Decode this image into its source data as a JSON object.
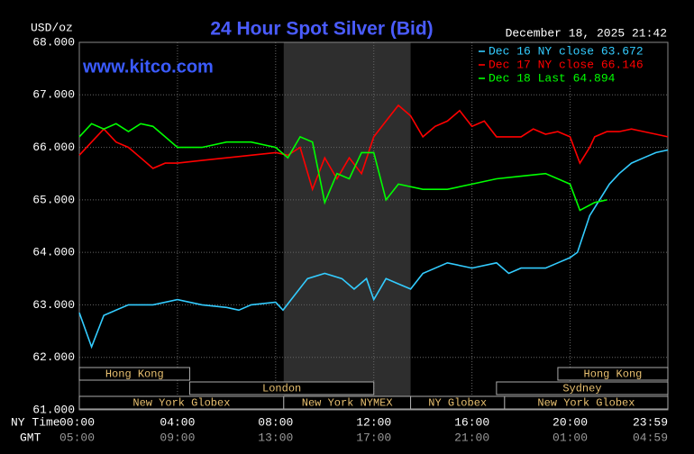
{
  "chart_data": {
    "type": "line",
    "title": "24 Hour Spot Silver (Bid)",
    "subtitle": "December 18, 2025 21:42",
    "watermark": "www.kitco.com",
    "y_label": "USD/oz",
    "x_label": "NY Time",
    "x2_label": "GMT",
    "xlim": [
      0,
      23.9833
    ],
    "xticks": [
      {
        "value": 0,
        "label": "00:00"
      },
      {
        "value": 4,
        "label": "04:00"
      },
      {
        "value": 8,
        "label": "08:00"
      },
      {
        "value": 12,
        "label": "12:00"
      },
      {
        "value": 16,
        "label": "16:00"
      },
      {
        "value": 20,
        "label": "20:00"
      },
      {
        "value": 23.9833,
        "label": "23:59"
      }
    ],
    "x2tick_labels": [
      "05:00",
      "09:00",
      "13:00",
      "17:00",
      "21:00",
      "01:00",
      "04:59"
    ],
    "ylim": [
      61,
      68
    ],
    "yticks": [
      {
        "value": 61,
        "label": "61.000"
      },
      {
        "value": 62,
        "label": "62.000"
      },
      {
        "value": 63,
        "label": "63.000"
      },
      {
        "value": 64,
        "label": "64.000"
      },
      {
        "value": 65,
        "label": "65.000"
      },
      {
        "value": 66,
        "label": "66.000"
      },
      {
        "value": 67,
        "label": "67.000"
      },
      {
        "value": 68,
        "label": "68.000"
      }
    ],
    "grid": true,
    "legend": "top-right",
    "series": [
      {
        "name": "Dec 16 NY close 63.672",
        "color": "#33ccff",
        "x": [
          0,
          0.5,
          1,
          2,
          3,
          4,
          5,
          6,
          6.5,
          7,
          8,
          8.3,
          8.8,
          9.3,
          10,
          10.7,
          11.2,
          11.7,
          12,
          12.5,
          13,
          13.5,
          14,
          15,
          16,
          17,
          17.5,
          18,
          19,
          19.5,
          20,
          20.3,
          20.8,
          21.2,
          21.6,
          22,
          22.5,
          23,
          23.5,
          23.9833
        ],
        "values": [
          62.85,
          62.2,
          62.8,
          63.0,
          63.0,
          63.1,
          63.0,
          62.95,
          62.9,
          63.0,
          63.05,
          62.9,
          63.2,
          63.5,
          63.6,
          63.5,
          63.3,
          63.5,
          63.1,
          63.5,
          63.4,
          63.3,
          63.6,
          63.8,
          63.7,
          63.8,
          63.6,
          63.7,
          63.7,
          63.8,
          63.9,
          64.0,
          64.7,
          65.0,
          65.3,
          65.5,
          65.7,
          65.8,
          65.9,
          65.95
        ]
      },
      {
        "name": "Dec 17 NY close 66.146",
        "color": "#ff0000",
        "x": [
          0,
          0.5,
          1,
          1.5,
          2,
          2.5,
          3,
          3.5,
          4,
          5,
          6,
          7,
          8,
          8.5,
          9,
          9.5,
          10,
          10.5,
          11,
          11.5,
          12,
          12.5,
          13,
          13.5,
          14,
          14.5,
          15,
          15.5,
          16,
          16.5,
          17,
          18,
          18.5,
          19,
          19.5,
          20,
          20.4,
          20.8,
          21,
          21.5,
          22,
          22.5,
          23,
          23.5,
          23.9833
        ],
        "values": [
          65.85,
          66.1,
          66.35,
          66.1,
          66.0,
          65.8,
          65.6,
          65.7,
          65.7,
          65.75,
          65.8,
          65.85,
          65.9,
          65.85,
          66.0,
          65.2,
          65.8,
          65.4,
          65.8,
          65.5,
          66.2,
          66.5,
          66.8,
          66.6,
          66.2,
          66.4,
          66.5,
          66.7,
          66.4,
          66.5,
          66.2,
          66.2,
          66.35,
          66.25,
          66.3,
          66.2,
          65.7,
          66.0,
          66.2,
          66.3,
          66.3,
          66.35,
          66.3,
          66.25,
          66.2
        ]
      },
      {
        "name": "Dec 18 Last 64.894",
        "color": "#00ff00",
        "x": [
          0,
          0.5,
          1,
          1.5,
          2,
          2.5,
          3,
          3.5,
          4,
          5,
          6,
          7,
          8,
          8.5,
          9,
          9.5,
          10,
          10.5,
          11,
          11.5,
          12,
          12.5,
          13,
          14,
          15,
          16,
          17,
          18,
          19,
          19.5,
          20,
          20.4,
          21,
          21.5
        ],
        "values": [
          66.2,
          66.45,
          66.35,
          66.45,
          66.3,
          66.45,
          66.4,
          66.2,
          66.0,
          66.0,
          66.1,
          66.1,
          66.0,
          65.8,
          66.2,
          66.1,
          64.95,
          65.5,
          65.4,
          65.9,
          65.9,
          65.0,
          65.3,
          65.2,
          65.2,
          65.3,
          65.4,
          65.45,
          65.5,
          65.4,
          65.3,
          64.8,
          64.95,
          65.0
        ]
      }
    ],
    "sessions": [
      {
        "label": "Hong Kong",
        "start": 0,
        "end": 4.5,
        "row": 0
      },
      {
        "label": "London",
        "start": 4.5,
        "end": 12,
        "row": 1
      },
      {
        "label": "New York Globex",
        "start": 0,
        "end": 8.33,
        "row": 2
      },
      {
        "label": "New York NYMEX",
        "start": 8.33,
        "end": 13.5,
        "row": 2,
        "shaded": true
      },
      {
        "label": "NY Globex",
        "start": 13.5,
        "end": 17.33,
        "row": 2
      },
      {
        "label": "Hong Kong",
        "start": 19.5,
        "end": 23.9833,
        "row": 0
      },
      {
        "label": "Sydney",
        "start": 17,
        "end": 23.9833,
        "row": 1
      },
      {
        "label": "New York Globex",
        "start": 17.33,
        "end": 23.9833,
        "row": 2
      }
    ]
  }
}
